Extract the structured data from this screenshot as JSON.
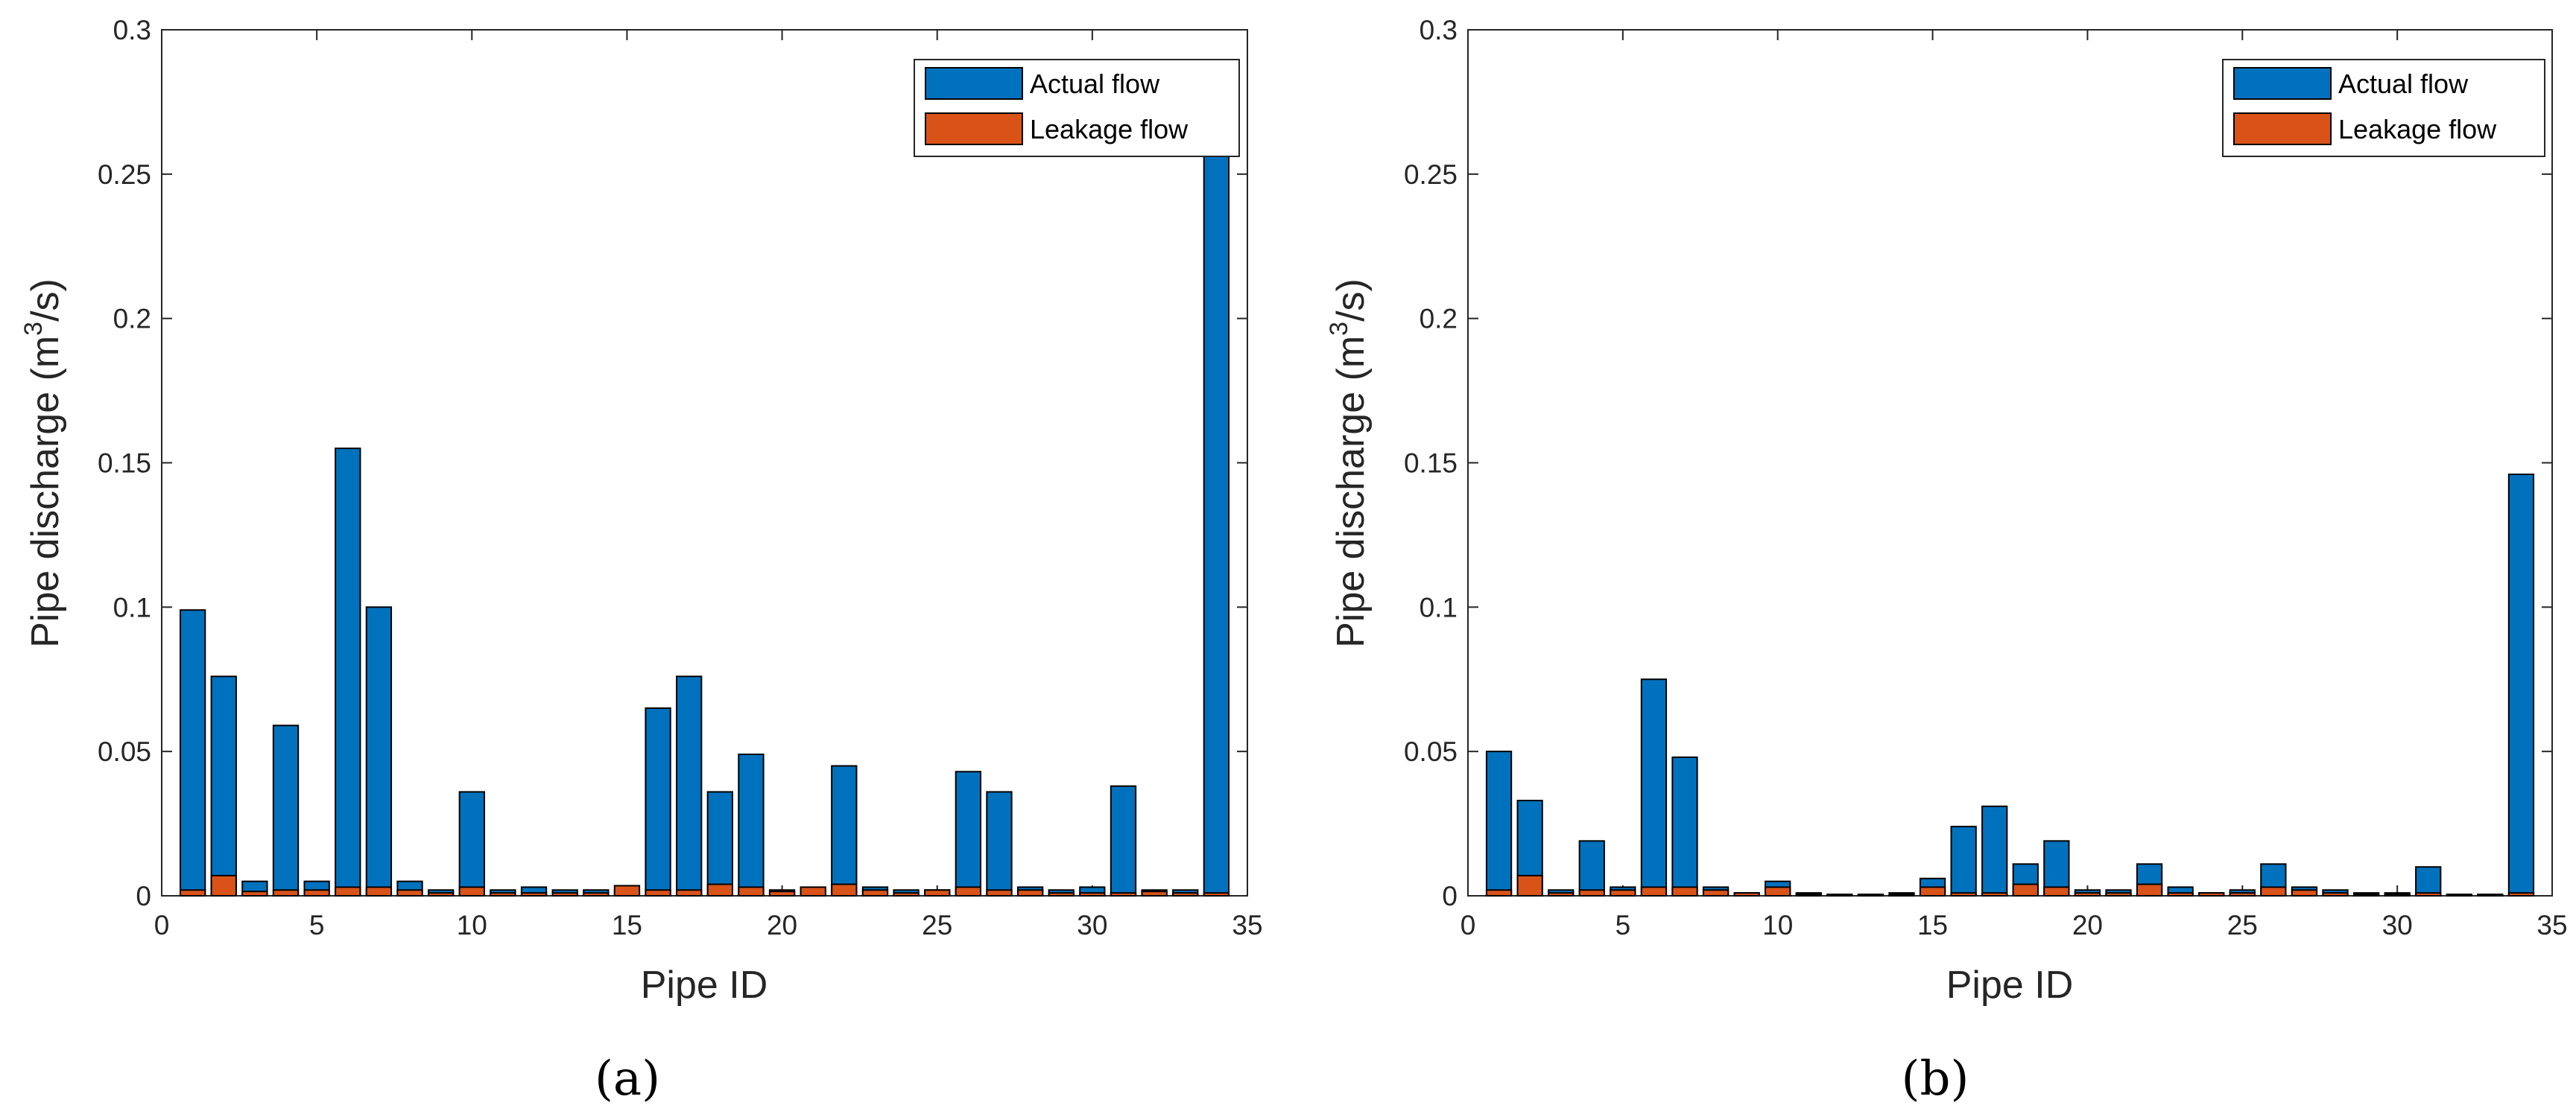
{
  "colors": {
    "actual": "#0072BD",
    "leakage": "#D95319",
    "axis": "#262626"
  },
  "chart_data": [
    {
      "type": "bar",
      "stacked": false,
      "overlaid": true,
      "caption": "(a)",
      "xlabel": "Pipe ID",
      "ylabel_prefix": "Pipe discharge (m",
      "ylabel_sup": "3",
      "ylabel_suffix": "/s)",
      "xlim": [
        0,
        35
      ],
      "ylim": [
        0,
        0.3
      ],
      "xticks": [
        "0",
        "5",
        "10",
        "15",
        "20",
        "25",
        "30",
        "35"
      ],
      "yticks": [
        "0",
        "0.05",
        "0.1",
        "0.15",
        "0.2",
        "0.25",
        "0.3"
      ],
      "legend": {
        "position": "top-right",
        "entries": [
          "Actual flow",
          "Leakage flow"
        ]
      },
      "x": [
        1,
        2,
        3,
        4,
        5,
        6,
        7,
        8,
        9,
        10,
        11,
        12,
        13,
        14,
        15,
        16,
        17,
        18,
        19,
        20,
        21,
        22,
        23,
        24,
        25,
        26,
        27,
        28,
        29,
        30,
        31,
        32,
        33,
        34
      ],
      "series": [
        {
          "name": "Actual flow",
          "values": [
            0.099,
            0.076,
            0.005,
            0.059,
            0.005,
            0.155,
            0.1,
            0.005,
            0.002,
            0.036,
            0.002,
            0.003,
            0.002,
            0.002,
            0.002,
            0.065,
            0.076,
            0.036,
            0.049,
            0.002,
            0.002,
            0.045,
            0.003,
            0.002,
            0.002,
            0.043,
            0.036,
            0.003,
            0.002,
            0.003,
            0.038,
            0.002,
            0.002,
            0.258
          ]
        },
        {
          "name": "Leakage flow",
          "values": [
            0.002,
            0.007,
            0.0015,
            0.002,
            0.002,
            0.003,
            0.003,
            0.002,
            0.001,
            0.003,
            0.001,
            0.001,
            0.001,
            0.001,
            0.0035,
            0.002,
            0.002,
            0.004,
            0.003,
            0.0015,
            0.003,
            0.004,
            0.002,
            0.001,
            0.002,
            0.003,
            0.002,
            0.002,
            0.001,
            0.001,
            0.001,
            0.0015,
            0.001,
            0.001
          ]
        }
      ]
    },
    {
      "type": "bar",
      "stacked": false,
      "overlaid": true,
      "caption": "(b)",
      "xlabel": "Pipe ID",
      "ylabel_prefix": "Pipe discharge (m",
      "ylabel_sup": "3",
      "ylabel_suffix": "/s)",
      "xlim": [
        0,
        35
      ],
      "ylim": [
        0,
        0.3
      ],
      "xticks": [
        "0",
        "5",
        "10",
        "15",
        "20",
        "25",
        "30",
        "35"
      ],
      "yticks": [
        "0",
        "0.05",
        "0.1",
        "0.15",
        "0.2",
        "0.25",
        "0.3"
      ],
      "legend": {
        "position": "top-right",
        "entries": [
          "Actual flow",
          "Leakage flow"
        ]
      },
      "x": [
        1,
        2,
        3,
        4,
        5,
        6,
        7,
        8,
        9,
        10,
        11,
        12,
        13,
        14,
        15,
        16,
        17,
        18,
        19,
        20,
        21,
        22,
        23,
        24,
        25,
        26,
        27,
        28,
        29,
        30,
        31,
        32,
        33,
        34
      ],
      "series": [
        {
          "name": "Actual flow",
          "values": [
            0.05,
            0.033,
            0.002,
            0.019,
            0.003,
            0.075,
            0.048,
            0.003,
            0.001,
            0.005,
            0.001,
            0.0005,
            0.0005,
            0.001,
            0.006,
            0.024,
            0.031,
            0.011,
            0.019,
            0.002,
            0.002,
            0.011,
            0.003,
            0.001,
            0.002,
            0.011,
            0.003,
            0.002,
            0.001,
            0.001,
            0.01,
            0.0005,
            0.0005,
            0.146
          ]
        },
        {
          "name": "Leakage flow",
          "values": [
            0.002,
            0.007,
            0.001,
            0.002,
            0.002,
            0.003,
            0.003,
            0.002,
            0.001,
            0.003,
            0.0005,
            0.0003,
            0.0003,
            0.0005,
            0.003,
            0.001,
            0.001,
            0.004,
            0.003,
            0.001,
            0.001,
            0.004,
            0.001,
            0.001,
            0.001,
            0.003,
            0.002,
            0.001,
            0.0005,
            0.0005,
            0.001,
            0.0003,
            0.0003,
            0.001
          ]
        }
      ]
    }
  ]
}
